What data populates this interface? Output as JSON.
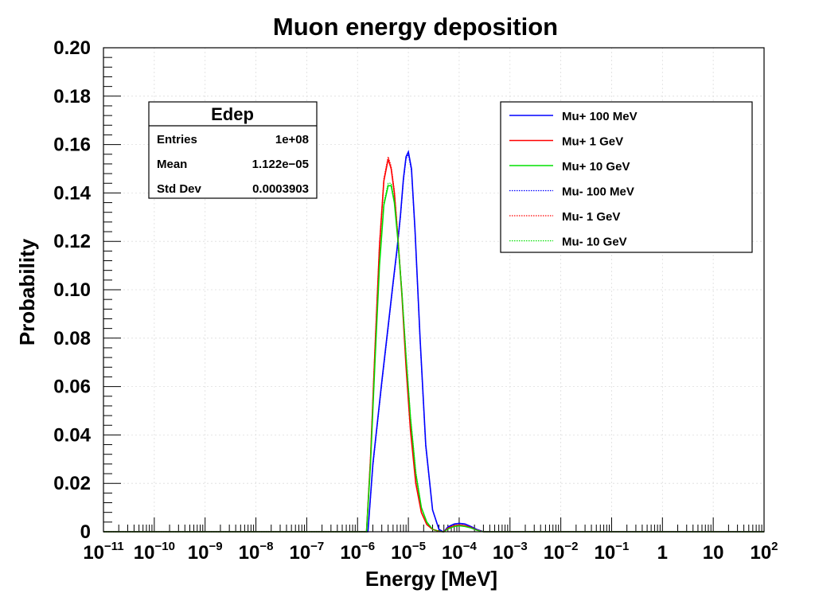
{
  "chart_data": {
    "type": "line",
    "title": "Muon energy deposition",
    "xlabel": "Energy [MeV]",
    "ylabel": "Probability",
    "xscale": "log",
    "xlim": [
      1e-11,
      100
    ],
    "ylim": [
      0,
      0.2
    ],
    "grid": true,
    "yticks": [
      "0",
      "0.02",
      "0.04",
      "0.06",
      "0.08",
      "0.10",
      "0.12",
      "0.14",
      "0.16",
      "0.18",
      "0.20"
    ],
    "xticks": [
      {
        "base": "10",
        "exp": "−11"
      },
      {
        "base": "10",
        "exp": "−10"
      },
      {
        "base": "10",
        "exp": "−9"
      },
      {
        "base": "10",
        "exp": "−8"
      },
      {
        "base": "10",
        "exp": "−7"
      },
      {
        "base": "10",
        "exp": "−6"
      },
      {
        "base": "10",
        "exp": "−5"
      },
      {
        "base": "10",
        "exp": "−4"
      },
      {
        "base": "10",
        "exp": "−3"
      },
      {
        "base": "10",
        "exp": "−2"
      },
      {
        "base": "10",
        "exp": "−1"
      },
      {
        "base": "1",
        "exp": ""
      },
      {
        "base": "10",
        "exp": ""
      },
      {
        "base": "10",
        "exp": "2"
      }
    ],
    "stats_box": {
      "title": "Edep",
      "rows": [
        {
          "label": "Entries",
          "value": "1e+08"
        },
        {
          "label": "Mean",
          "value": "1.122e−05"
        },
        {
          "label": "Std Dev",
          "value": "0.0003903"
        }
      ]
    },
    "legend_position": "top-right",
    "series": [
      {
        "name": "Mu+ 100 MeV",
        "color": "#0000ff",
        "style": "solid",
        "x": [
          1e-11,
          1.6e-06,
          2e-06,
          3e-06,
          4e-06,
          5e-06,
          6e-06,
          7e-06,
          8e-06,
          9e-06,
          1e-05,
          1.15e-05,
          1.35e-05,
          1.7e-05,
          2.2e-05,
          3e-05,
          4e-05,
          4.8e-05,
          5e-05,
          6e-05,
          8e-05,
          0.0001,
          0.00013,
          0.00017,
          0.00022,
          0.0003,
          100
        ],
        "y": [
          0,
          0,
          0.028,
          0.062,
          0.085,
          0.103,
          0.117,
          0.131,
          0.146,
          0.155,
          0.157,
          0.15,
          0.125,
          0.08,
          0.036,
          0.009,
          0.001,
          0,
          0,
          0.002,
          0.0032,
          0.0035,
          0.0032,
          0.0022,
          0.001,
          0,
          0
        ]
      },
      {
        "name": "Mu+ 1 GeV",
        "color": "#ff0000",
        "style": "solid",
        "x": [
          1e-11,
          1.5e-06,
          1.8e-06,
          2.2e-06,
          2.7e-06,
          3.3e-06,
          4e-06,
          4.6e-06,
          5.3e-06,
          6.2e-06,
          7.5e-06,
          9e-06,
          1.1e-05,
          1.4e-05,
          1.8e-05,
          2.3e-05,
          3e-05,
          4e-05,
          4.8e-05,
          5e-05,
          6e-05,
          8e-05,
          0.0001,
          0.00013,
          0.00017,
          0.00022,
          0.0003,
          100
        ],
        "y": [
          0,
          0,
          0.03,
          0.075,
          0.118,
          0.145,
          0.154,
          0.15,
          0.14,
          0.122,
          0.097,
          0.068,
          0.042,
          0.02,
          0.008,
          0.003,
          0.001,
          0.0002,
          0,
          0,
          0.0015,
          0.0025,
          0.0028,
          0.0025,
          0.0018,
          0.0008,
          0,
          0
        ]
      },
      {
        "name": "Mu+ 10 GeV",
        "color": "#00e000",
        "style": "solid",
        "x": [
          1e-11,
          1.5e-06,
          1.8e-06,
          2.2e-06,
          2.7e-06,
          3.3e-06,
          4e-06,
          4.6e-06,
          5.3e-06,
          6.2e-06,
          7.5e-06,
          9e-06,
          1.1e-05,
          1.4e-05,
          1.8e-05,
          2.3e-05,
          3e-05,
          4e-05,
          4.8e-05,
          5e-05,
          6e-05,
          8e-05,
          0.0001,
          0.00013,
          0.00017,
          0.00022,
          0.0003,
          100
        ],
        "y": [
          0,
          0,
          0.028,
          0.07,
          0.11,
          0.135,
          0.143,
          0.143,
          0.136,
          0.121,
          0.098,
          0.072,
          0.047,
          0.024,
          0.01,
          0.004,
          0.001,
          0.0002,
          0,
          0,
          0.0012,
          0.0022,
          0.0025,
          0.0022,
          0.0016,
          0.0007,
          0,
          0
        ]
      },
      {
        "name": "Mu- 100 MeV",
        "color": "#0000ff",
        "style": "dotted",
        "x": [
          1e-11,
          1.6e-06,
          2e-06,
          3e-06,
          4e-06,
          5e-06,
          6e-06,
          7e-06,
          8e-06,
          9e-06,
          1e-05,
          1.15e-05,
          1.35e-05,
          1.7e-05,
          2.2e-05,
          3e-05,
          4e-05,
          4.8e-05,
          5e-05,
          6e-05,
          8e-05,
          0.0001,
          0.00013,
          0.00017,
          0.00022,
          0.0003,
          100
        ],
        "y": [
          0,
          0,
          0.027,
          0.061,
          0.084,
          0.102,
          0.116,
          0.13,
          0.145,
          0.154,
          0.156,
          0.149,
          0.124,
          0.079,
          0.035,
          0.009,
          0.001,
          0,
          0,
          0.002,
          0.0031,
          0.0034,
          0.0031,
          0.0021,
          0.001,
          0,
          0
        ]
      },
      {
        "name": "Mu- 1 GeV",
        "color": "#ff0000",
        "style": "dotted",
        "x": [
          1e-11,
          1.5e-06,
          1.8e-06,
          2.2e-06,
          2.7e-06,
          3.3e-06,
          4e-06,
          4.6e-06,
          5.3e-06,
          6.2e-06,
          7.5e-06,
          9e-06,
          1.1e-05,
          1.4e-05,
          1.8e-05,
          2.3e-05,
          3e-05,
          4e-05,
          4.8e-05,
          5e-05,
          6e-05,
          8e-05,
          0.0001,
          0.00013,
          0.00017,
          0.00022,
          0.0003,
          100
        ],
        "y": [
          0,
          0,
          0.031,
          0.076,
          0.119,
          0.146,
          0.155,
          0.151,
          0.141,
          0.123,
          0.098,
          0.069,
          0.043,
          0.021,
          0.008,
          0.003,
          0.001,
          0.0002,
          0,
          0,
          0.0015,
          0.0025,
          0.0028,
          0.0025,
          0.0018,
          0.0008,
          0,
          0
        ]
      },
      {
        "name": "Mu- 10 GeV",
        "color": "#00e000",
        "style": "dotted",
        "x": [
          1e-11,
          1.5e-06,
          1.8e-06,
          2.2e-06,
          2.7e-06,
          3.3e-06,
          4e-06,
          4.6e-06,
          5.3e-06,
          6.2e-06,
          7.5e-06,
          9e-06,
          1.1e-05,
          1.4e-05,
          1.8e-05,
          2.3e-05,
          3e-05,
          4e-05,
          4.8e-05,
          5e-05,
          6e-05,
          8e-05,
          0.0001,
          0.00013,
          0.00017,
          0.00022,
          0.0003,
          100
        ],
        "y": [
          0,
          0,
          0.029,
          0.071,
          0.111,
          0.136,
          0.144,
          0.144,
          0.137,
          0.122,
          0.099,
          0.073,
          0.048,
          0.025,
          0.01,
          0.004,
          0.001,
          0.0002,
          0,
          0,
          0.0012,
          0.0022,
          0.0025,
          0.0022,
          0.0016,
          0.0007,
          0,
          0
        ]
      }
    ]
  }
}
